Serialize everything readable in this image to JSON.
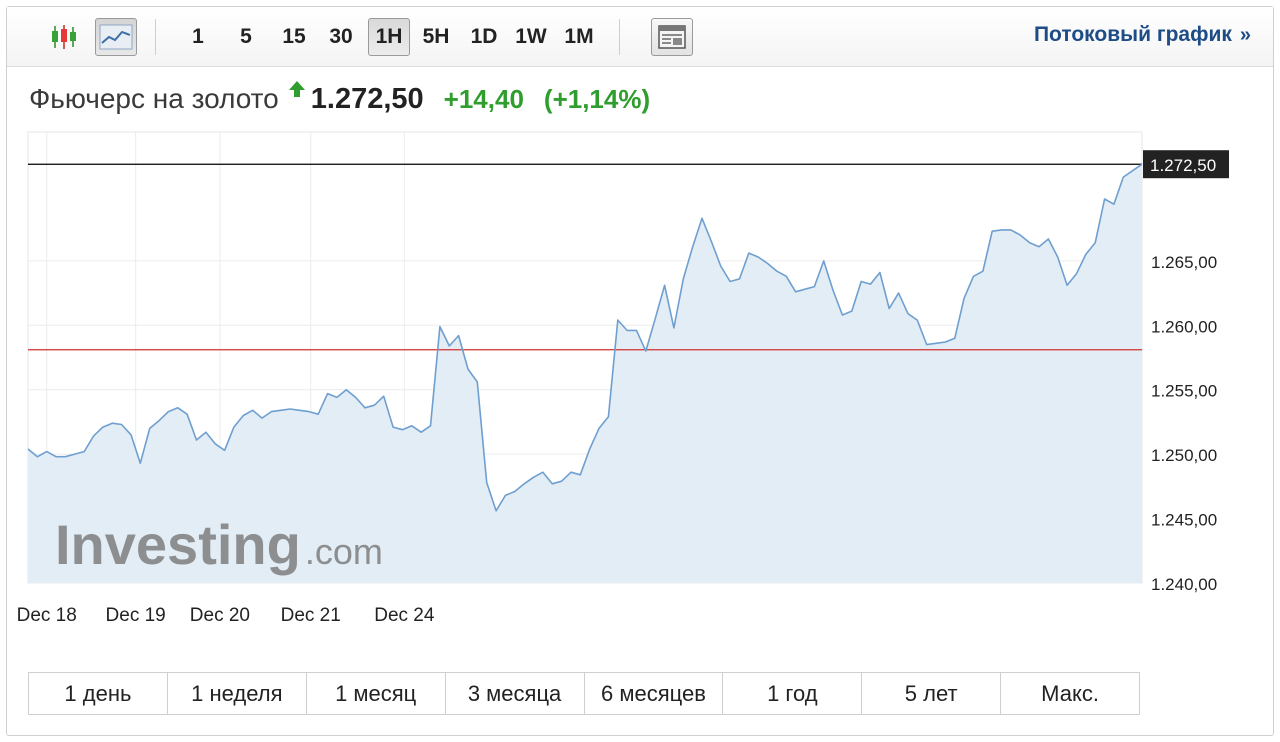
{
  "toolbar": {
    "candle_icon": "candlestick-icon",
    "line_icon": "line-chart-icon",
    "intervals": [
      "1",
      "5",
      "15",
      "30",
      "1H",
      "5H",
      "1D",
      "1W",
      "1M"
    ],
    "active_interval": "1H",
    "layout_icon": "layout-icon",
    "stream_label": "Потоковый график",
    "stream_chevron": "»"
  },
  "header": {
    "name": "Фьючерс на золото",
    "price": "1.272,50",
    "change": "+14,40",
    "change_pct": "(+1,14%)",
    "direction_icon": "up-arrow-icon"
  },
  "colors": {
    "up": "#2f9e2f",
    "line": "#6f9fd0",
    "area": "#e3edf5",
    "reference_line": "#d32f2f",
    "current_line": "#000000",
    "link": "#1d4c86"
  },
  "chart_data": {
    "type": "area",
    "title": "",
    "xlabel": "",
    "ylabel": "",
    "ylim": [
      1240,
      1275
    ],
    "y_ticks": [
      1240,
      1245,
      1250,
      1255,
      1260,
      1265
    ],
    "y_tick_labels": [
      "1.240,00",
      "1.245,00",
      "1.250,00",
      "1.255,00",
      "1.260,00",
      "1.265,00"
    ],
    "x_tick_labels": [
      "Dec 18",
      "Dec 19",
      "Dec 20",
      "Dec 21",
      "Dec 24"
    ],
    "x_tick_positions": [
      2.0,
      11.5,
      20.5,
      30.2,
      40.2
    ],
    "grid": true,
    "current_value": 1272.5,
    "current_label": "1.272,50",
    "reference_value": 1258.1,
    "series": [
      {
        "values": [
          1250.4,
          1249.8,
          1250.2,
          1249.8,
          1249.8,
          1250.0,
          1250.2,
          1251.4,
          1252.1,
          1252.4,
          1252.3,
          1251.5,
          1249.3,
          1252.0,
          1252.6,
          1253.3,
          1253.6,
          1253.1,
          1251.1,
          1251.7,
          1250.8,
          1250.3,
          1252.1,
          1253.0,
          1253.4,
          1252.8,
          1253.3,
          1253.4,
          1253.5,
          1253.4,
          1253.3,
          1253.1,
          1254.7,
          1254.4,
          1255.0,
          1254.4,
          1253.6,
          1253.8,
          1254.5,
          1252.1,
          1251.9,
          1252.2,
          1251.7,
          1252.2,
          1259.9,
          1258.4,
          1259.2,
          1256.6,
          1255.6,
          1247.8,
          1245.6,
          1246.8,
          1247.1,
          1247.7,
          1248.2,
          1248.6,
          1247.7,
          1247.9,
          1248.6,
          1248.4,
          1250.4,
          1252.0,
          1252.9,
          1260.4,
          1259.6,
          1259.6,
          1258.0,
          1260.5,
          1263.1,
          1259.8,
          1263.6,
          1266.1,
          1268.3,
          1266.5,
          1264.6,
          1263.4,
          1263.6,
          1265.6,
          1265.3,
          1264.8,
          1264.2,
          1263.8,
          1262.6,
          1262.8,
          1263.0,
          1265.0,
          1262.7,
          1260.8,
          1261.1,
          1263.4,
          1263.2,
          1264.1,
          1261.3,
          1262.5,
          1260.9,
          1260.4,
          1258.5,
          1258.6,
          1258.7,
          1259.0,
          1262.1,
          1263.8,
          1264.2,
          1267.3,
          1267.4,
          1267.4,
          1267.0,
          1266.4,
          1266.1,
          1266.7,
          1265.3,
          1263.1,
          1264.0,
          1265.5,
          1266.4,
          1269.8,
          1269.4,
          1271.5,
          1272.0,
          1272.5
        ]
      }
    ]
  },
  "watermark": "Investing.com",
  "ranges": [
    "1 день",
    "1 неделя",
    "1 месяц",
    "3 месяца",
    "6 месяцев",
    "1 год",
    "5 лет",
    "Макс."
  ]
}
